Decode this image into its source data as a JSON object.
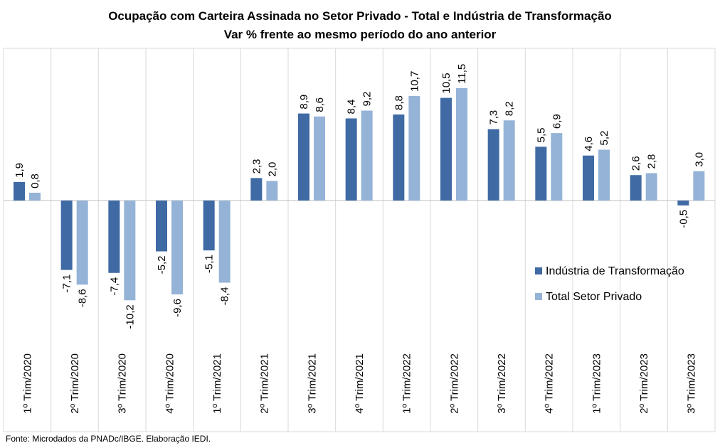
{
  "title": "Ocupação com Carteira Assinada no Setor Privado - Total e Indústria de Transformação",
  "subtitle": "Var % frente ao mesmo período do ano anterior",
  "source": "Fonte: Microdados da PNADc/IBGE. Elaboração IEDI.",
  "chart_data": {
    "type": "bar",
    "title": "Ocupação com Carteira Assinada no Setor Privado - Total e Indústria de Transformação",
    "subtitle": "Var % frente ao mesmo período do ano anterior",
    "categories": [
      "1º Trim/2020",
      "2º Trim/2020",
      "3º Trim/2020",
      "4º Trim/2020",
      "1º Trim/2021",
      "2º Trim/2021",
      "3º Trim/2021",
      "4º Trim/2021",
      "1º Trim/2022",
      "2º Trim/2022",
      "3º Trim/2022",
      "4º Trim/2022",
      "1º Trim/2023",
      "2º Trim/2023",
      "3º Trim/2023"
    ],
    "series": [
      {
        "name": "Indústria de Transformação",
        "color": "#3f6aa4",
        "values": [
          1.9,
          -7.1,
          -7.4,
          -5.2,
          -5.1,
          2.3,
          8.9,
          8.4,
          8.8,
          10.5,
          7.3,
          5.5,
          4.6,
          2.6,
          -0.5
        ],
        "labels": [
          "1,9",
          "-7,1",
          "-7,4",
          "-5,2",
          "-5,1",
          "2,3",
          "8,9",
          "8,4",
          "8,8",
          "10,5",
          "7,3",
          "5,5",
          "4,6",
          "2,6",
          "-0,5"
        ]
      },
      {
        "name": "Total Setor Privado",
        "color": "#95b3d7",
        "values": [
          0.8,
          -8.6,
          -10.2,
          -9.6,
          -8.4,
          2.0,
          8.6,
          9.2,
          10.7,
          11.5,
          8.2,
          6.9,
          5.2,
          2.8,
          3.0
        ],
        "labels": [
          "0,8",
          "-8,6",
          "-10,2",
          "-9,6",
          "-8,4",
          "2,0",
          "8,6",
          "9,2",
          "10,7",
          "11,5",
          "8,2",
          "6,9",
          "5,2",
          "2,8",
          "3,0"
        ]
      }
    ],
    "legend_position": "bottom-right (inside plot)",
    "grid": false,
    "category_separators": true,
    "xlabel": "",
    "ylabel": "",
    "y_axis_visible": false
  }
}
